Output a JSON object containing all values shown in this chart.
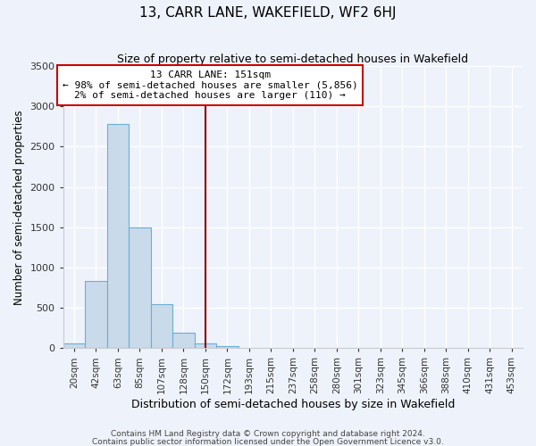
{
  "title": "13, CARR LANE, WAKEFIELD, WF2 6HJ",
  "subtitle": "Size of property relative to semi-detached houses in Wakefield",
  "xlabel": "Distribution of semi-detached houses by size in Wakefield",
  "ylabel": "Number of semi-detached properties",
  "bar_labels": [
    "20sqm",
    "42sqm",
    "63sqm",
    "85sqm",
    "107sqm",
    "128sqm",
    "150sqm",
    "172sqm",
    "193sqm",
    "215sqm",
    "237sqm",
    "258sqm",
    "280sqm",
    "301sqm",
    "323sqm",
    "345sqm",
    "366sqm",
    "388sqm",
    "410sqm",
    "431sqm",
    "453sqm"
  ],
  "bar_values": [
    60,
    830,
    2780,
    1500,
    550,
    190,
    60,
    30,
    0,
    0,
    0,
    0,
    0,
    0,
    0,
    0,
    0,
    0,
    0,
    0,
    0
  ],
  "bar_color": "#c9daea",
  "bar_edge_color": "#6baed6",
  "vline_x_index": 6,
  "vline_color": "#8b0000",
  "annotation_title": "13 CARR LANE: 151sqm",
  "annotation_line1": "← 98% of semi-detached houses are smaller (5,856)",
  "annotation_line2": "2% of semi-detached houses are larger (110) →",
  "annotation_box_color": "#ffffff",
  "annotation_box_edge": "#cc0000",
  "ylim": [
    0,
    3500
  ],
  "yticks": [
    0,
    500,
    1000,
    1500,
    2000,
    2500,
    3000,
    3500
  ],
  "footnote1": "Contains HM Land Registry data © Crown copyright and database right 2024.",
  "footnote2": "Contains public sector information licensed under the Open Government Licence v3.0.",
  "bg_color": "#eef2fa",
  "grid_color": "#ffffff"
}
